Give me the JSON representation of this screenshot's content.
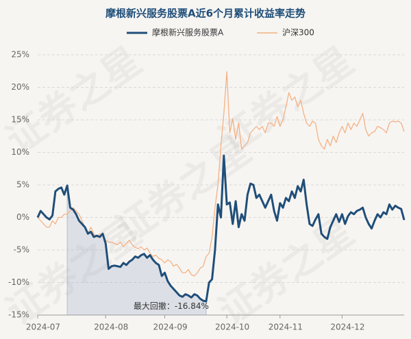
{
  "chart_data": {
    "type": "line",
    "title": "摩根新兴服务股票A近6个月累计收益率走势",
    "watermark": "证券之星",
    "categories": [
      "2024-07",
      null,
      null,
      null,
      null,
      null,
      null,
      null,
      null,
      null,
      null,
      null,
      null,
      null,
      null,
      null,
      null,
      null,
      null,
      null,
      null,
      null,
      null,
      "2024-08",
      null,
      null,
      null,
      null,
      null,
      null,
      null,
      null,
      null,
      null,
      null,
      null,
      null,
      null,
      null,
      null,
      null,
      null,
      null,
      "2024-09",
      null,
      null,
      null,
      null,
      null,
      null,
      null,
      null,
      null,
      null,
      null,
      null,
      null,
      null,
      null,
      null,
      null,
      null,
      null,
      null,
      "2024-10",
      null,
      null,
      null,
      null,
      null,
      null,
      null,
      null,
      null,
      null,
      null,
      null,
      null,
      null,
      null,
      null,
      null,
      "2024-11",
      null,
      null,
      null,
      null,
      null,
      null,
      null,
      null,
      null,
      null,
      null,
      null,
      null,
      null,
      null,
      null,
      null,
      null,
      null,
      null,
      "2024-12",
      null,
      null,
      null,
      null,
      null,
      null,
      null,
      null,
      null,
      null,
      null,
      null,
      null,
      null,
      null,
      null,
      null,
      null,
      null,
      null,
      null
    ],
    "series": [
      {
        "name": "摩根新兴服务股票A",
        "color": "#1f4e79",
        "width": 3,
        "values": [
          0,
          1,
          0.5,
          0,
          -0.3,
          0.3,
          4,
          4.4,
          4.6,
          3.5,
          4.9,
          1.5,
          1.2,
          0.5,
          -0.5,
          -1,
          -1.5,
          -2.5,
          -2.2,
          -3,
          -2.8,
          -3,
          -2.5,
          -4,
          -7.9,
          -7.5,
          -7.4,
          -7.5,
          -7.6,
          -7,
          -7.3,
          -6.8,
          -6.5,
          -6,
          -6.2,
          -5.8,
          -5.6,
          -6.2,
          -5.8,
          -6.5,
          -7,
          -7.3,
          -9,
          -8.5,
          -9.8,
          -10.5,
          -11,
          -11.5,
          -12,
          -12.2,
          -11.8,
          -12,
          -12.3,
          -11.8,
          -12,
          -12.5,
          -12.8,
          -12.9,
          -10,
          -9.5,
          -5,
          2,
          0,
          9.5,
          2,
          2.3,
          -1,
          2.5,
          -1.5,
          0.5,
          -0.5,
          3.5,
          5.2,
          5,
          3,
          3.5,
          2.5,
          1.5,
          2.5,
          3.5,
          1,
          -0.5,
          2.2,
          1.5,
          3,
          2.5,
          4,
          3,
          4.8,
          4,
          5.8,
          2,
          -1,
          -1.3,
          -0.3,
          0.5,
          -2.5,
          -3,
          -3.3,
          -1.5,
          -0.5,
          0.5,
          -0.7,
          0.5,
          -1,
          0.2,
          0.8,
          0.5,
          1,
          1.2,
          1.5,
          0,
          -1,
          -1.7,
          -0.5,
          0.5,
          0,
          0.8,
          0.5,
          2,
          1.2,
          1.8,
          1.5,
          1.3,
          -0.4
        ]
      },
      {
        "name": "沪深300",
        "color": "#f4b183",
        "width": 1.3,
        "values": [
          0,
          -0.5,
          -1,
          -1.5,
          -1.5,
          -0.5,
          -1,
          0,
          0,
          0.5,
          0.5,
          1,
          1.5,
          1,
          0.5,
          -0.5,
          -1.5,
          -2.5,
          -1.5,
          -2.5,
          -3,
          -2.5,
          -2.8,
          -3.5,
          -3.8,
          -3.8,
          -4,
          -4.2,
          -3.8,
          -4.5,
          -4,
          -3.5,
          -4.2,
          -4.6,
          -4.8,
          -4.5,
          -5,
          -4.7,
          -5.5,
          -6,
          -5.8,
          -6.3,
          -6.5,
          -7,
          -6.5,
          -6.8,
          -7.5,
          -7.2,
          -7.8,
          -8.5,
          -8.5,
          -8,
          -8.8,
          -9,
          -8.5,
          -7.8,
          -7.5,
          -6,
          -5.5,
          -3,
          1.5,
          5,
          11,
          16,
          22.4,
          13,
          15.2,
          12,
          14.5,
          10.5,
          11,
          11.5,
          13,
          13.5,
          14,
          13.5,
          14,
          13,
          14.5,
          14.5,
          14,
          15.5,
          14,
          15,
          17,
          19.2,
          18,
          18.5,
          17,
          18,
          16,
          14.5,
          14,
          14.8,
          14.5,
          12,
          11,
          10.5,
          12,
          11,
          12.5,
          11.5,
          13,
          14,
          13,
          14.5,
          13.5,
          14.5,
          14,
          15,
          16,
          13.5,
          12.5,
          13,
          13.2,
          14,
          13.8,
          13.5,
          13,
          14.5,
          14.8,
          14.7,
          14.8,
          14.5,
          13.2
        ]
      }
    ],
    "annotation": {
      "text": "最大回撤：",
      "value": -16.84,
      "value_label": "-16.84%"
    },
    "ylim": [
      -15,
      25
    ],
    "yticks": [
      {
        "value": -15,
        "label": "-15%"
      },
      {
        "value": -10,
        "label": "-10%"
      },
      {
        "value": -5,
        "label": "-5%"
      },
      {
        "value": 0,
        "label": "0%"
      },
      {
        "value": 5,
        "label": "5%"
      },
      {
        "value": 10,
        "label": "10%"
      },
      {
        "value": 15,
        "label": "15%"
      },
      {
        "value": 20,
        "label": "20%"
      },
      {
        "value": 25,
        "label": "25%"
      }
    ],
    "grid": true
  }
}
